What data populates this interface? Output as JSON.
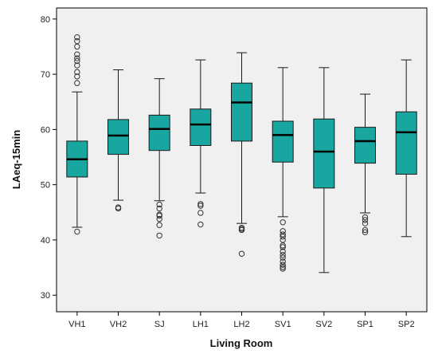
{
  "chart_data": {
    "type": "box",
    "xlabel": "Living Room",
    "ylabel": "LAeq-15min",
    "ylim": [
      27,
      82
    ],
    "y_ticks": [
      30,
      40,
      50,
      60,
      70,
      80
    ],
    "categories": [
      "VH1",
      "VH2",
      "SJ",
      "LH1",
      "LH2",
      "SV1",
      "SV2",
      "SP1",
      "SP2"
    ],
    "boxes": [
      {
        "category": "VH1",
        "whisker_low": 42.3,
        "q1": 51.4,
        "median": 54.6,
        "q3": 57.9,
        "whisker_high": 66.8,
        "outliers": [
          41.5,
          68.4,
          69.6,
          70.4,
          71.6,
          72.4,
          72.9,
          73.6,
          75.0,
          76.0,
          76.7
        ]
      },
      {
        "category": "VH2",
        "whisker_low": 47.2,
        "q1": 55.5,
        "median": 58.9,
        "q3": 61.8,
        "whisker_high": 70.8,
        "outliers": [
          45.7,
          45.9
        ]
      },
      {
        "category": "SJ",
        "whisker_low": 47.1,
        "q1": 56.2,
        "median": 60.1,
        "q3": 62.6,
        "whisker_high": 69.2,
        "outliers": [
          40.8,
          42.7,
          43.8,
          44.4,
          44.6,
          45.7,
          46.4
        ]
      },
      {
        "category": "LH1",
        "whisker_low": 48.5,
        "q1": 57.1,
        "median": 60.9,
        "q3": 63.7,
        "whisker_high": 72.6,
        "outliers": [
          42.8,
          44.9,
          46.2,
          46.5
        ]
      },
      {
        "category": "LH2",
        "whisker_low": 43.0,
        "q1": 57.9,
        "median": 64.9,
        "q3": 68.4,
        "whisker_high": 73.9,
        "outliers": [
          37.5,
          41.8,
          42.0,
          42.2
        ]
      },
      {
        "category": "SV1",
        "whisker_low": 44.2,
        "q1": 54.1,
        "median": 59.0,
        "q3": 61.5,
        "whisker_high": 71.2,
        "outliers": [
          34.8,
          35.1,
          35.5,
          36.1,
          36.8,
          37.3,
          37.9,
          38.7,
          39.0,
          40.0,
          40.6,
          41.0,
          41.6,
          43.2
        ]
      },
      {
        "category": "SV2",
        "whisker_low": 34.1,
        "q1": 49.4,
        "median": 56.0,
        "q3": 61.9,
        "whisker_high": 71.2,
        "outliers": []
      },
      {
        "category": "SP1",
        "whisker_low": 44.9,
        "q1": 53.9,
        "median": 57.9,
        "q3": 60.4,
        "whisker_high": 66.4,
        "outliers": [
          41.4,
          41.8,
          43.0,
          43.6,
          44.1
        ]
      },
      {
        "category": "SP2",
        "whisker_low": 40.6,
        "q1": 51.9,
        "median": 59.5,
        "q3": 63.2,
        "whisker_high": 72.6,
        "outliers": []
      }
    ],
    "colors": {
      "box_fill": "#1aa6a0",
      "box_stroke": "#1a1a1a",
      "median": "#000000",
      "plot_background": "#f0f0f0",
      "outlier_stroke": "#333333"
    },
    "grid": false,
    "legend": "none"
  }
}
